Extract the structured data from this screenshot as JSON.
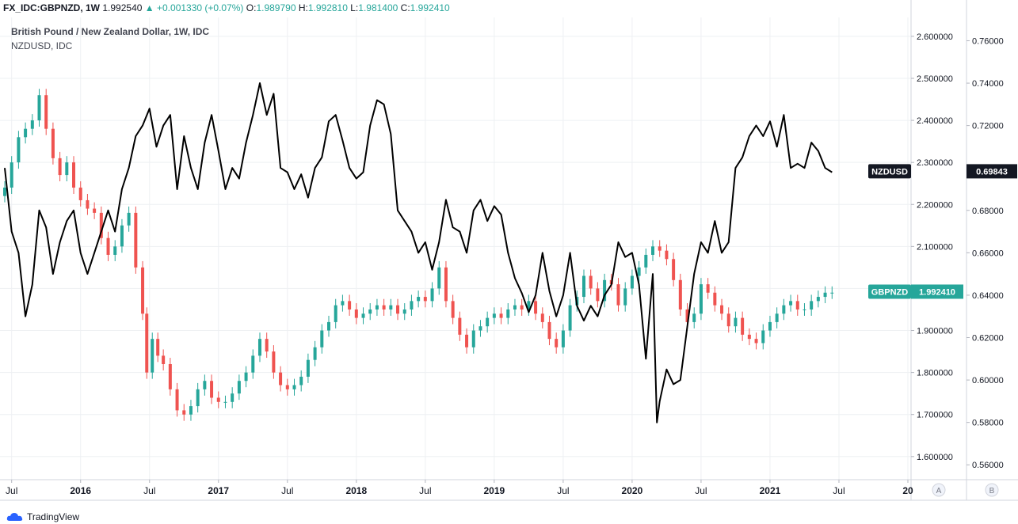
{
  "header": {
    "symbol": "FX_IDC:GBPNZD, 1W",
    "last": "1.992540",
    "change": "+0.001330 (+0.07%)",
    "o_label": "O:",
    "o": "1.989790",
    "h_label": "H:",
    "h": "1.992810",
    "l_label": "L:",
    "l": "1.981400",
    "c_label": "C:",
    "c": "1.992410"
  },
  "title": "British Pound / New Zealand Dollar, 1W, IDC",
  "subtitle": "NZDUSD, IDC",
  "footer": {
    "brand": "TradingView"
  },
  "colors": {
    "up": "#26a69a",
    "down": "#ef5350",
    "line": "#000000",
    "grid": "#eef0f3",
    "axis_text": "#131722"
  },
  "chart_data": {
    "type": "line",
    "x_ticks": [
      "Jul",
      "2016",
      "Jul",
      "2017",
      "Jul",
      "2018",
      "Jul",
      "2019",
      "Jul",
      "2020",
      "Jul",
      "2021",
      "Jul",
      "20"
    ],
    "x_tick_years": [
      2015.5,
      2016.0,
      2016.5,
      2017.0,
      2017.5,
      2018.0,
      2018.5,
      2019.0,
      2019.5,
      2020.0,
      2020.5,
      2021.0,
      2021.5,
      2022.0
    ],
    "x_range": [
      2015.45,
      2022.0
    ],
    "left_axis": {
      "label": "GBPNZD",
      "ticks": [
        "2.600000",
        "2.500000",
        "2.400000",
        "2.300000",
        "2.200000",
        "2.100000",
        "2.000000",
        "1.900000",
        "1.800000",
        "1.700000",
        "1.600000"
      ],
      "tick_values": [
        2.6,
        2.5,
        2.4,
        2.3,
        2.2,
        2.1,
        2.0,
        1.9,
        1.8,
        1.7,
        1.6
      ],
      "range": [
        1.545,
        2.645
      ]
    },
    "right_axis": {
      "label": "NZDUSD",
      "ticks": [
        "0.76000",
        "0.74000",
        "0.72000",
        "0.70000",
        "0.68000",
        "0.66000",
        "0.64000",
        "0.62000",
        "0.60000",
        "0.58000",
        "0.56000"
      ],
      "tick_values": [
        0.76,
        0.74,
        0.72,
        0.7,
        0.68,
        0.66,
        0.64,
        0.62,
        0.6,
        0.58,
        0.56
      ],
      "range": [
        0.553,
        0.771
      ]
    },
    "badges": [
      {
        "name": "NZDUSD",
        "value": "0.69843",
        "series": "NZDUSD",
        "y": 0.69843
      },
      {
        "name": "GBPNZD",
        "value": "1.992410",
        "series": "GBPNZD",
        "y": 1.99241
      }
    ],
    "scale_buttons": [
      "A",
      "B"
    ],
    "series": [
      {
        "name": "GBPNZD",
        "style": "candles",
        "x": [
          2015.45,
          2015.5,
          2015.55,
          2015.6,
          2015.65,
          2015.7,
          2015.75,
          2015.8,
          2015.85,
          2015.9,
          2015.95,
          2016.0,
          2016.05,
          2016.1,
          2016.15,
          2016.2,
          2016.25,
          2016.3,
          2016.35,
          2016.4,
          2016.45,
          2016.48,
          2016.52,
          2016.56,
          2016.6,
          2016.65,
          2016.7,
          2016.75,
          2016.8,
          2016.85,
          2016.9,
          2016.95,
          2017.0,
          2017.05,
          2017.1,
          2017.15,
          2017.2,
          2017.25,
          2017.3,
          2017.35,
          2017.4,
          2017.45,
          2017.5,
          2017.55,
          2017.6,
          2017.65,
          2017.7,
          2017.75,
          2017.8,
          2017.85,
          2017.9,
          2017.95,
          2018.0,
          2018.05,
          2018.1,
          2018.15,
          2018.2,
          2018.25,
          2018.3,
          2018.35,
          2018.4,
          2018.45,
          2018.5,
          2018.55,
          2018.6,
          2018.65,
          2018.7,
          2018.75,
          2018.8,
          2018.85,
          2018.9,
          2018.95,
          2019.0,
          2019.05,
          2019.1,
          2019.15,
          2019.2,
          2019.25,
          2019.3,
          2019.35,
          2019.4,
          2019.45,
          2019.5,
          2019.55,
          2019.6,
          2019.65,
          2019.7,
          2019.75,
          2019.8,
          2019.85,
          2019.9,
          2019.95,
          2020.0,
          2020.05,
          2020.1,
          2020.15,
          2020.2,
          2020.25,
          2020.3,
          2020.35,
          2020.4,
          2020.45,
          2020.5,
          2020.55,
          2020.6,
          2020.65,
          2020.7,
          2020.75,
          2020.8,
          2020.85,
          2020.9,
          2020.95,
          2021.0,
          2021.05,
          2021.1,
          2021.15,
          2021.2,
          2021.25,
          2021.3,
          2021.35,
          2021.4,
          2021.45
        ],
        "values": [
          2.24,
          2.3,
          2.36,
          2.38,
          2.4,
          2.46,
          2.38,
          2.31,
          2.27,
          2.3,
          2.24,
          2.21,
          2.19,
          2.18,
          2.12,
          2.08,
          2.1,
          2.15,
          2.18,
          2.05,
          1.94,
          1.8,
          1.88,
          1.84,
          1.82,
          1.76,
          1.71,
          1.7,
          1.72,
          1.76,
          1.78,
          1.74,
          1.73,
          1.73,
          1.75,
          1.78,
          1.8,
          1.84,
          1.88,
          1.85,
          1.8,
          1.77,
          1.76,
          1.77,
          1.79,
          1.83,
          1.86,
          1.9,
          1.92,
          1.96,
          1.97,
          1.95,
          1.93,
          1.94,
          1.95,
          1.96,
          1.95,
          1.96,
          1.94,
          1.95,
          1.97,
          1.98,
          1.97,
          2.0,
          2.05,
          1.97,
          1.93,
          1.89,
          1.86,
          1.9,
          1.91,
          1.93,
          1.94,
          1.93,
          1.95,
          1.96,
          1.95,
          1.97,
          1.94,
          1.92,
          1.88,
          1.86,
          1.9,
          1.96,
          1.98,
          2.03,
          2.0,
          1.97,
          2.02,
          2.01,
          1.96,
          2.0,
          2.03,
          2.05,
          2.08,
          2.1,
          2.09,
          2.07,
          2.02,
          1.95,
          1.92,
          1.94,
          2.01,
          1.99,
          1.96,
          1.94,
          1.91,
          1.93,
          1.89,
          1.88,
          1.87,
          1.9,
          1.92,
          1.94,
          1.96,
          1.97,
          1.95,
          1.95,
          1.97,
          1.98,
          1.99,
          1.99
        ]
      },
      {
        "name": "NZDUSD",
        "style": "line",
        "x": [
          2015.45,
          2015.5,
          2015.55,
          2015.6,
          2015.65,
          2015.7,
          2015.75,
          2015.8,
          2015.85,
          2015.9,
          2015.95,
          2016.0,
          2016.05,
          2016.1,
          2016.15,
          2016.2,
          2016.25,
          2016.3,
          2016.35,
          2016.4,
          2016.45,
          2016.5,
          2016.55,
          2016.6,
          2016.65,
          2016.7,
          2016.75,
          2016.8,
          2016.85,
          2016.9,
          2016.95,
          2017.0,
          2017.05,
          2017.1,
          2017.15,
          2017.2,
          2017.25,
          2017.3,
          2017.35,
          2017.4,
          2017.45,
          2017.5,
          2017.55,
          2017.6,
          2017.65,
          2017.7,
          2017.75,
          2017.8,
          2017.85,
          2017.9,
          2017.95,
          2018.0,
          2018.05,
          2018.1,
          2018.15,
          2018.2,
          2018.25,
          2018.3,
          2018.35,
          2018.4,
          2018.45,
          2018.5,
          2018.55,
          2018.6,
          2018.65,
          2018.7,
          2018.75,
          2018.8,
          2018.85,
          2018.9,
          2018.95,
          2019.0,
          2019.05,
          2019.1,
          2019.15,
          2019.2,
          2019.25,
          2019.3,
          2019.35,
          2019.4,
          2019.45,
          2019.5,
          2019.55,
          2019.6,
          2019.65,
          2019.7,
          2019.75,
          2019.8,
          2019.85,
          2019.9,
          2019.95,
          2020.0,
          2020.05,
          2020.1,
          2020.15,
          2020.18,
          2020.2,
          2020.25,
          2020.3,
          2020.35,
          2020.4,
          2020.45,
          2020.5,
          2020.55,
          2020.6,
          2020.65,
          2020.7,
          2020.75,
          2020.8,
          2020.85,
          2020.9,
          2020.95,
          2021.0,
          2021.05,
          2021.1,
          2021.15,
          2021.2,
          2021.25,
          2021.3,
          2021.35,
          2021.4,
          2021.45
        ],
        "values": [
          0.7,
          0.67,
          0.66,
          0.63,
          0.645,
          0.68,
          0.672,
          0.65,
          0.665,
          0.675,
          0.68,
          0.66,
          0.65,
          0.66,
          0.67,
          0.68,
          0.67,
          0.69,
          0.7,
          0.715,
          0.72,
          0.728,
          0.71,
          0.72,
          0.725,
          0.69,
          0.715,
          0.7,
          0.69,
          0.712,
          0.725,
          0.708,
          0.69,
          0.7,
          0.695,
          0.712,
          0.725,
          0.74,
          0.725,
          0.735,
          0.7,
          0.698,
          0.69,
          0.697,
          0.686,
          0.7,
          0.705,
          0.722,
          0.725,
          0.713,
          0.7,
          0.695,
          0.698,
          0.72,
          0.732,
          0.73,
          0.716,
          0.68,
          0.675,
          0.67,
          0.66,
          0.665,
          0.652,
          0.665,
          0.685,
          0.672,
          0.67,
          0.66,
          0.68,
          0.685,
          0.675,
          0.682,
          0.678,
          0.66,
          0.648,
          0.641,
          0.632,
          0.64,
          0.66,
          0.642,
          0.63,
          0.64,
          0.66,
          0.635,
          0.628,
          0.635,
          0.63,
          0.64,
          0.645,
          0.665,
          0.658,
          0.66,
          0.645,
          0.61,
          0.65,
          0.58,
          0.59,
          0.605,
          0.598,
          0.6,
          0.625,
          0.65,
          0.665,
          0.66,
          0.675,
          0.66,
          0.665,
          0.7,
          0.705,
          0.715,
          0.72,
          0.715,
          0.722,
          0.71,
          0.725,
          0.7,
          0.702,
          0.7,
          0.712,
          0.708,
          0.7,
          0.698
        ]
      }
    ]
  }
}
